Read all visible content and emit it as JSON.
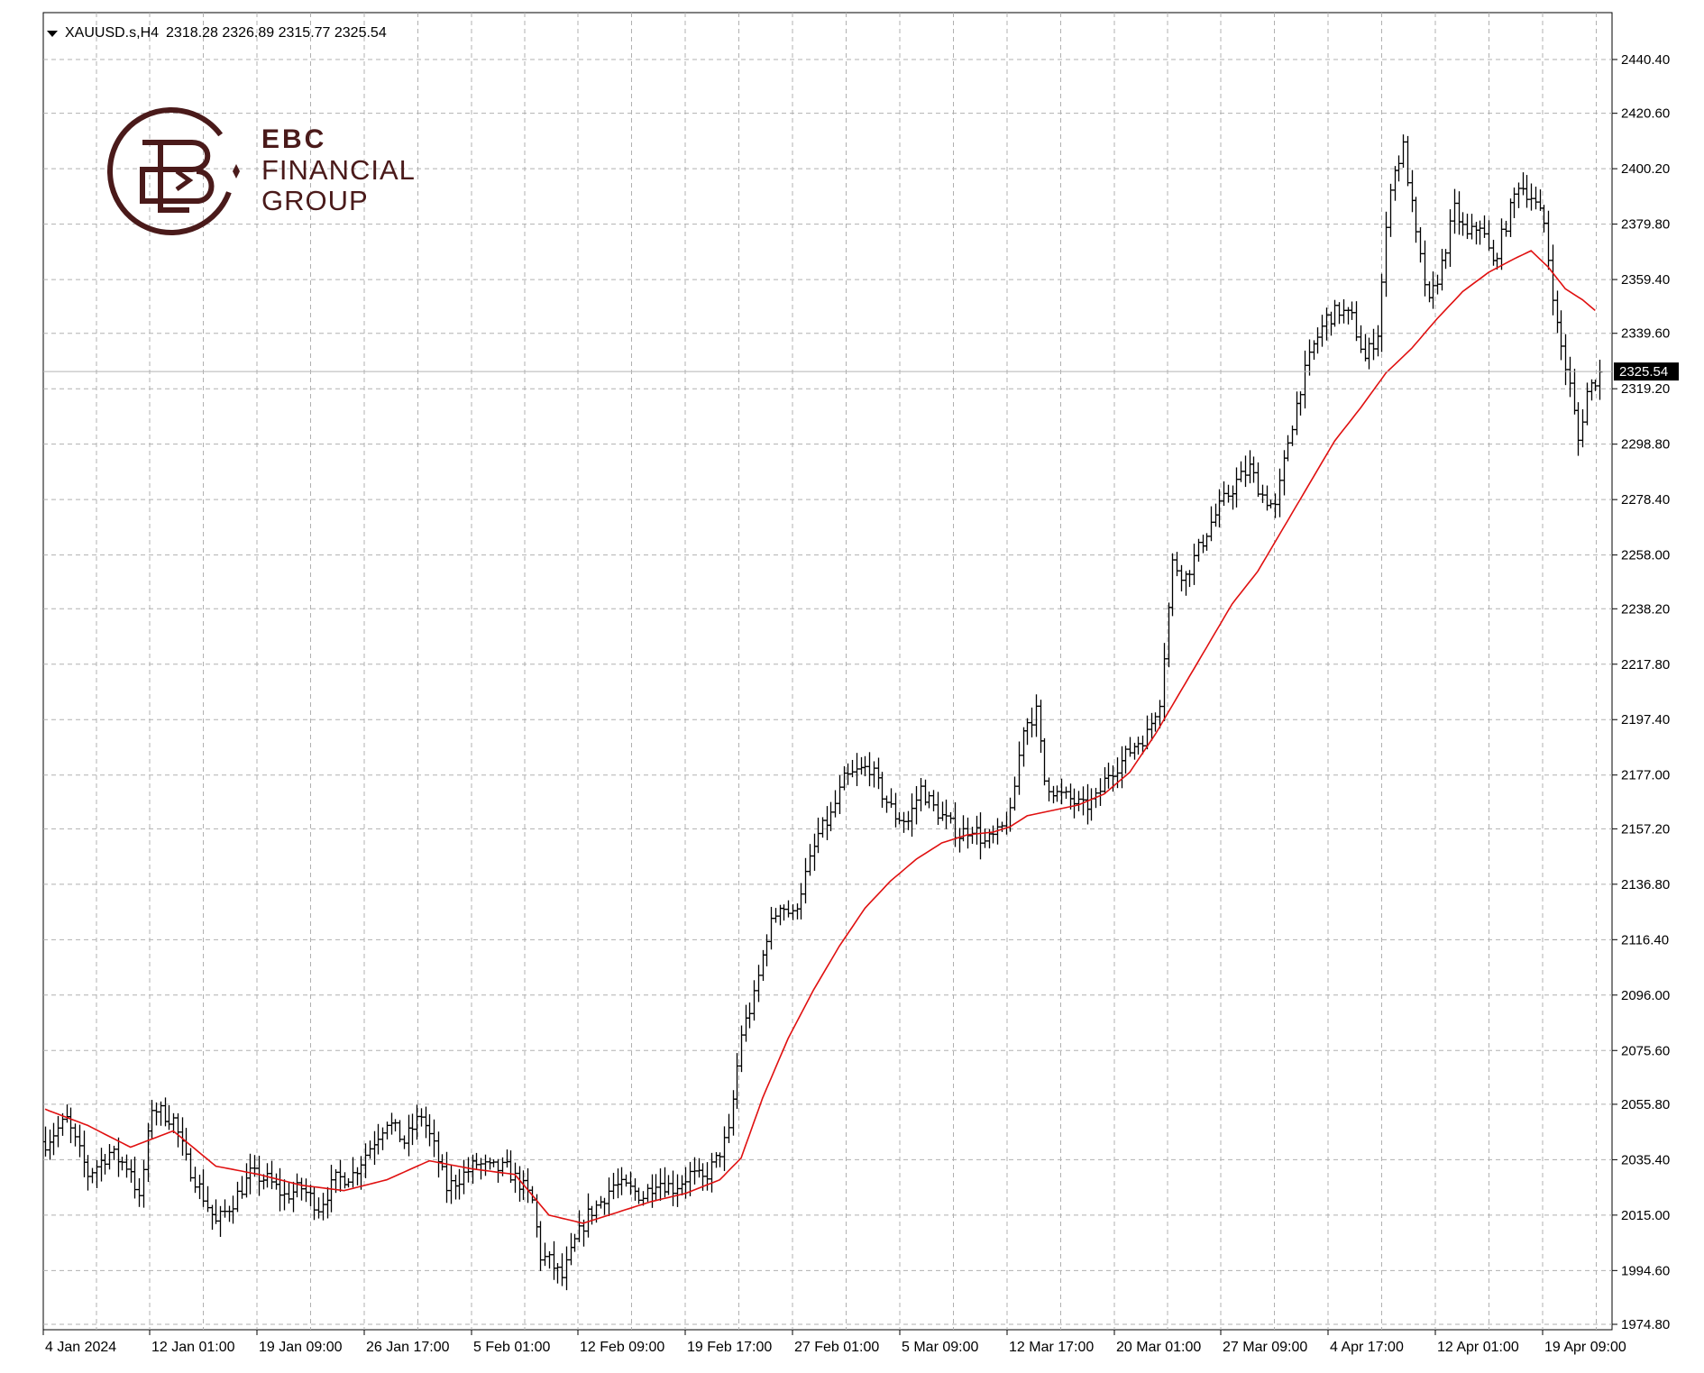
{
  "header": {
    "symbol": "XAUUSD.s,H4",
    "ohlc": "2318.28 2326.89 2315.77 2325.54"
  },
  "logo": {
    "line1": "EBC",
    "line2": "FINANCIAL",
    "line3": "GROUP"
  },
  "chart_data": {
    "type": "bar",
    "xlabel": "",
    "ylabel": "",
    "ylim": [
      1974.8,
      2440.4
    ],
    "grid": true,
    "y_ticks": [
      "2440.40",
      "2420.60",
      "2400.20",
      "2379.80",
      "2359.40",
      "2339.60",
      "2319.20",
      "2298.80",
      "2278.40",
      "2258.00",
      "2238.20",
      "2217.80",
      "2197.40",
      "2177.00",
      "2157.20",
      "2136.80",
      "2116.40",
      "2096.00",
      "2075.60",
      "2055.80",
      "2035.40",
      "2015.00",
      "1994.60",
      "1974.80"
    ],
    "x_ticks": [
      "4 Jan 2024",
      "12 Jan 01:00",
      "19 Jan 09:00",
      "26 Jan 17:00",
      "5 Feb 01:00",
      "12 Feb 09:00",
      "19 Feb 17:00",
      "27 Feb 01:00",
      "5 Mar 09:00",
      "12 Mar 17:00",
      "20 Mar 01:00",
      "27 Mar 09:00",
      "4 Apr 17:00",
      "12 Apr 01:00",
      "19 Apr 09:00"
    ],
    "current_price": 2325.54,
    "current_price_label": "2325.54",
    "price_path": [
      [
        0,
        2042
      ],
      [
        5,
        2050
      ],
      [
        10,
        2030
      ],
      [
        15,
        2038
      ],
      [
        20,
        2032
      ],
      [
        22,
        2020
      ],
      [
        25,
        2055
      ],
      [
        30,
        2050
      ],
      [
        33,
        2035
      ],
      [
        36,
        2025
      ],
      [
        40,
        2012
      ],
      [
        44,
        2020
      ],
      [
        48,
        2030
      ],
      [
        52,
        2028
      ],
      [
        56,
        2022
      ],
      [
        60,
        2025
      ],
      [
        64,
        2018
      ],
      [
        68,
        2028
      ],
      [
        72,
        2030
      ],
      [
        76,
        2040
      ],
      [
        80,
        2050
      ],
      [
        84,
        2042
      ],
      [
        88,
        2052
      ],
      [
        91,
        2040
      ],
      [
        94,
        2025
      ],
      [
        98,
        2030
      ],
      [
        101,
        2034
      ],
      [
        104,
        2032
      ],
      [
        108,
        2032
      ],
      [
        112,
        2025
      ],
      [
        114,
        2020
      ],
      [
        116,
        2000
      ],
      [
        118,
        1998
      ],
      [
        121,
        1992
      ],
      [
        124,
        2005
      ],
      [
        127,
        2015
      ],
      [
        130,
        2020
      ],
      [
        133,
        2026
      ],
      [
        136,
        2025
      ],
      [
        140,
        2022
      ],
      [
        143,
        2028
      ],
      [
        147,
        2025
      ],
      [
        151,
        2030
      ],
      [
        154,
        2028
      ],
      [
        157,
        2035
      ],
      [
        160,
        2045
      ],
      [
        163,
        2082
      ],
      [
        166,
        2095
      ],
      [
        169,
        2118
      ],
      [
        172,
        2130
      ],
      [
        175,
        2125
      ],
      [
        178,
        2140
      ],
      [
        181,
        2155
      ],
      [
        184,
        2162
      ],
      [
        187,
        2175
      ],
      [
        190,
        2178
      ],
      [
        193,
        2180
      ],
      [
        196,
        2170
      ],
      [
        199,
        2162
      ],
      [
        202,
        2160
      ],
      [
        205,
        2172
      ],
      [
        208,
        2165
      ],
      [
        211,
        2160
      ],
      [
        214,
        2155
      ],
      [
        217,
        2158
      ],
      [
        220,
        2152
      ],
      [
        223,
        2155
      ],
      [
        226,
        2162
      ],
      [
        229,
        2195
      ],
      [
        232,
        2200
      ],
      [
        234,
        2175
      ],
      [
        237,
        2170
      ],
      [
        240,
        2168
      ],
      [
        243,
        2165
      ],
      [
        246,
        2168
      ],
      [
        249,
        2178
      ],
      [
        252,
        2182
      ],
      [
        255,
        2188
      ],
      [
        258,
        2192
      ],
      [
        261,
        2205
      ],
      [
        264,
        2255
      ],
      [
        267,
        2250
      ],
      [
        270,
        2260
      ],
      [
        273,
        2270
      ],
      [
        276,
        2278
      ],
      [
        279,
        2285
      ],
      [
        282,
        2290
      ],
      [
        285,
        2280
      ],
      [
        288,
        2275
      ],
      [
        291,
        2300
      ],
      [
        294,
        2320
      ],
      [
        297,
        2335
      ],
      [
        300,
        2345
      ],
      [
        303,
        2348
      ],
      [
        306,
        2345
      ],
      [
        309,
        2330
      ],
      [
        312,
        2340
      ],
      [
        315,
        2395
      ],
      [
        318,
        2408
      ],
      [
        321,
        2375
      ],
      [
        324,
        2350
      ],
      [
        327,
        2365
      ],
      [
        330,
        2385
      ],
      [
        333,
        2375
      ],
      [
        336,
        2380
      ],
      [
        339,
        2365
      ],
      [
        342,
        2380
      ],
      [
        345,
        2395
      ],
      [
        348,
        2390
      ],
      [
        351,
        2380
      ],
      [
        354,
        2342
      ],
      [
        357,
        2320
      ],
      [
        359,
        2300
      ],
      [
        361,
        2318
      ],
      [
        364,
        2325
      ]
    ],
    "ma_path": [
      [
        0,
        2054
      ],
      [
        10,
        2048
      ],
      [
        20,
        2040
      ],
      [
        30,
        2046
      ],
      [
        40,
        2033
      ],
      [
        50,
        2030
      ],
      [
        60,
        2026
      ],
      [
        70,
        2024
      ],
      [
        80,
        2028
      ],
      [
        90,
        2035
      ],
      [
        100,
        2032
      ],
      [
        110,
        2030
      ],
      [
        118,
        2015
      ],
      [
        126,
        2012
      ],
      [
        134,
        2016
      ],
      [
        142,
        2020
      ],
      [
        150,
        2023
      ],
      [
        158,
        2028
      ],
      [
        163,
        2036
      ],
      [
        168,
        2058
      ],
      [
        174,
        2080
      ],
      [
        180,
        2098
      ],
      [
        186,
        2114
      ],
      [
        192,
        2128
      ],
      [
        198,
        2138
      ],
      [
        204,
        2146
      ],
      [
        210,
        2152
      ],
      [
        216,
        2155
      ],
      [
        222,
        2156
      ],
      [
        226,
        2158
      ],
      [
        230,
        2162
      ],
      [
        236,
        2164
      ],
      [
        242,
        2166
      ],
      [
        248,
        2170
      ],
      [
        254,
        2178
      ],
      [
        260,
        2192
      ],
      [
        266,
        2208
      ],
      [
        272,
        2224
      ],
      [
        278,
        2240
      ],
      [
        284,
        2252
      ],
      [
        290,
        2268
      ],
      [
        296,
        2284
      ],
      [
        302,
        2300
      ],
      [
        308,
        2312
      ],
      [
        314,
        2325
      ],
      [
        320,
        2334
      ],
      [
        326,
        2345
      ],
      [
        332,
        2355
      ],
      [
        338,
        2362
      ],
      [
        344,
        2367
      ],
      [
        348,
        2370
      ],
      [
        352,
        2364
      ],
      [
        356,
        2356
      ],
      [
        360,
        2352
      ],
      [
        363,
        2348
      ]
    ]
  },
  "colors": {
    "background": "#ffffff",
    "grid": "#b0b0b0",
    "bars": "#000000",
    "ma": "#e01010",
    "price_line": "#b4b4b4",
    "logo": "#4a1a1a"
  }
}
